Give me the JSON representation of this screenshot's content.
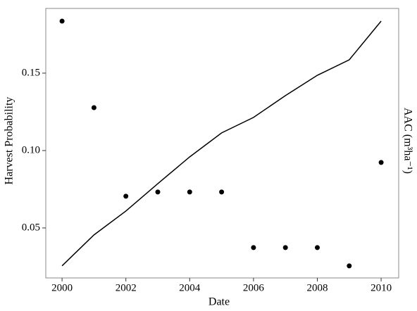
{
  "chart_data": {
    "type": "scatter",
    "x_label": "Date",
    "y_label": "Harvest Probability",
    "y2_label": "AAC (m³ha⁻¹)",
    "xlim": [
      1999.49,
      2010.55
    ],
    "xticks": [
      2000,
      2002,
      2004,
      2006,
      2008,
      2010
    ],
    "ylim": [
      0.0177,
      0.1918
    ],
    "yticks": [
      {
        "value": 0.05,
        "label": "0.05"
      },
      {
        "value": 0.1,
        "label": "0.10"
      },
      {
        "value": 0.15,
        "label": "0.15"
      }
    ],
    "y2lim": [
      0.0177,
      0.1918
    ],
    "x": [
      2000,
      2001,
      2002,
      2003,
      2004,
      2005,
      2006,
      2007,
      2008,
      2009,
      2010
    ],
    "series": [
      {
        "type": "scatter",
        "color": "#000000",
        "values": [
          0.1836,
          0.1277,
          0.0705,
          0.0732,
          0.0732,
          0.0732,
          0.0373,
          0.0373,
          0.0373,
          0.0255,
          0.0923
        ]
      },
      {
        "type": "line",
        "axis": "y2",
        "color": "#000000",
        "values": [
          0.0255,
          0.0455,
          0.0609,
          0.0786,
          0.0959,
          0.1114,
          0.1214,
          0.1355,
          0.1486,
          0.1586,
          0.1836
        ]
      }
    ]
  }
}
